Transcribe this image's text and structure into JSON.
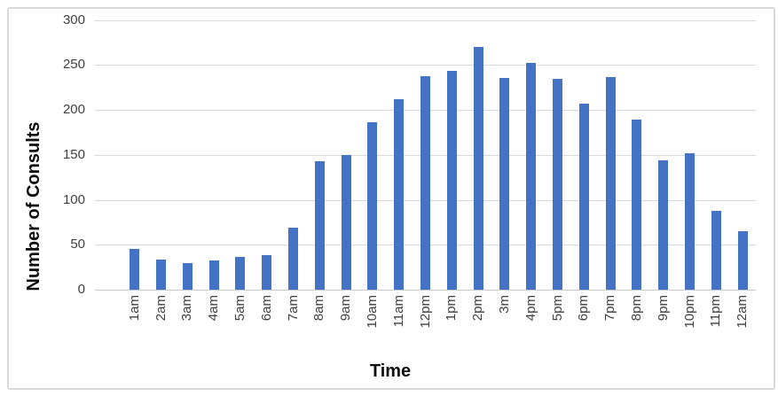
{
  "chart_data": {
    "type": "bar",
    "title": "",
    "xlabel": "Time",
    "ylabel": "Number of Consults",
    "categories": [
      "1am",
      "2am",
      "3am",
      "4am",
      "5am",
      "6am",
      "7am",
      "8am",
      "9am",
      "10am",
      "11am",
      "12pm",
      "1pm",
      "2pm",
      "3m",
      "4pm",
      "5pm",
      "6pm",
      "7pm",
      "8pm",
      "9pm",
      "10pm",
      "11pm",
      "12am"
    ],
    "values": [
      45,
      34,
      30,
      33,
      36,
      38,
      69,
      143,
      150,
      186,
      212,
      238,
      244,
      270,
      236,
      252,
      235,
      207,
      237,
      189,
      144,
      152,
      88,
      65
    ],
    "ylim": [
      0,
      300
    ],
    "yticks": [
      0,
      50,
      100,
      150,
      200,
      250,
      300
    ],
    "grid": "horizontal-only",
    "legend": "none",
    "colors": {
      "bar": "#4472C4",
      "gridline": "#D9D9D9",
      "axis_line": "#C9C9C9",
      "tick_label": "#3F3F3F",
      "axis_title": "#0D0D0D",
      "chart_border": "#D9D9D9",
      "background": "#FFFFFF"
    }
  }
}
